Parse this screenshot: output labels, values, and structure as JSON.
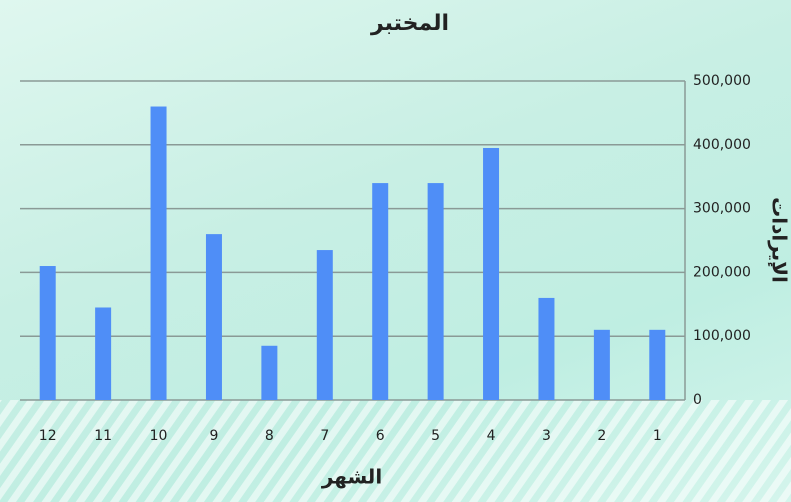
{
  "chart_data": {
    "type": "bar",
    "title": "المختبر",
    "x_label": "الشهر",
    "y_label": "الإيرادات",
    "categories": [
      "1",
      "2",
      "3",
      "4",
      "5",
      "6",
      "7",
      "8",
      "9",
      "10",
      "11",
      "12"
    ],
    "values": [
      110000,
      110000,
      160000,
      395000,
      340000,
      340000,
      235000,
      85000,
      260000,
      460000,
      145000,
      210000
    ],
    "color": "#4f8ef7",
    "ylim": [
      0,
      500000
    ],
    "yticks": [
      0,
      {
        "value": 100000,
        "label": "100,000"
      },
      {
        "value": 200000,
        "label": "200,000"
      },
      {
        "value": 300000,
        "label": "300,000"
      },
      {
        "value": 400000,
        "label": "400,000"
      },
      {
        "value": 500000,
        "label": "500,000"
      }
    ],
    "grid": true,
    "x_reversed": true,
    "y_axis_side": "right"
  }
}
